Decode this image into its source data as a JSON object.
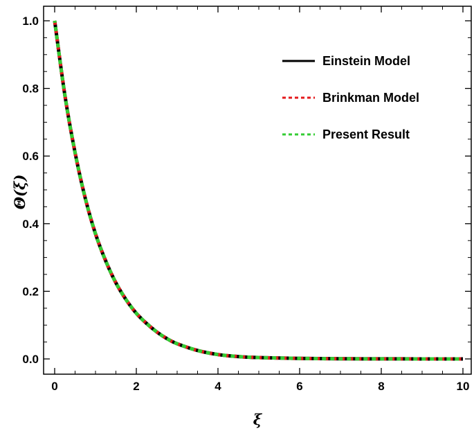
{
  "chart_data": {
    "type": "line",
    "title": "",
    "xlabel": "ξ",
    "ylabel": "Θ(ξ)",
    "xlim": [
      0,
      10
    ],
    "ylim": [
      0,
      1
    ],
    "x_ticks": [
      0,
      2,
      4,
      6,
      8,
      10
    ],
    "y_ticks": [
      "0.0",
      "0.2",
      "0.4",
      "0.6",
      "0.8",
      "1.0"
    ],
    "x_tick_labels": [
      "0",
      "2",
      "4",
      "6",
      "8",
      "10"
    ],
    "grid": false,
    "legend_position": "top-right",
    "x": [
      0,
      0.25,
      0.5,
      0.75,
      1,
      1.25,
      1.5,
      1.75,
      2,
      2.25,
      2.5,
      2.75,
      3,
      3.5,
      4,
      4.5,
      5,
      6,
      7,
      8,
      9,
      10
    ],
    "series": [
      {
        "name": "Einstein Model",
        "color": "#000000",
        "style": "solid",
        "values": [
          1.0,
          0.78,
          0.61,
          0.475,
          0.37,
          0.29,
          0.225,
          0.175,
          0.135,
          0.105,
          0.08,
          0.06,
          0.045,
          0.025,
          0.013,
          0.007,
          0.004,
          0.0015,
          0.0006,
          0.0002,
          0.0001,
          0.0
        ]
      },
      {
        "name": "Brinkman Model",
        "color": "#e41a1c",
        "style": "dashed",
        "values": [
          1.0,
          0.78,
          0.61,
          0.475,
          0.37,
          0.29,
          0.225,
          0.175,
          0.135,
          0.105,
          0.08,
          0.06,
          0.045,
          0.025,
          0.013,
          0.007,
          0.004,
          0.0015,
          0.0006,
          0.0002,
          0.0001,
          0.0
        ]
      },
      {
        "name": "Present Result",
        "color": "#33cc33",
        "style": "dashed",
        "values": [
          1.0,
          0.78,
          0.61,
          0.475,
          0.37,
          0.29,
          0.225,
          0.175,
          0.135,
          0.105,
          0.08,
          0.06,
          0.045,
          0.025,
          0.013,
          0.007,
          0.004,
          0.0015,
          0.0006,
          0.0002,
          0.0001,
          0.0
        ]
      }
    ]
  }
}
